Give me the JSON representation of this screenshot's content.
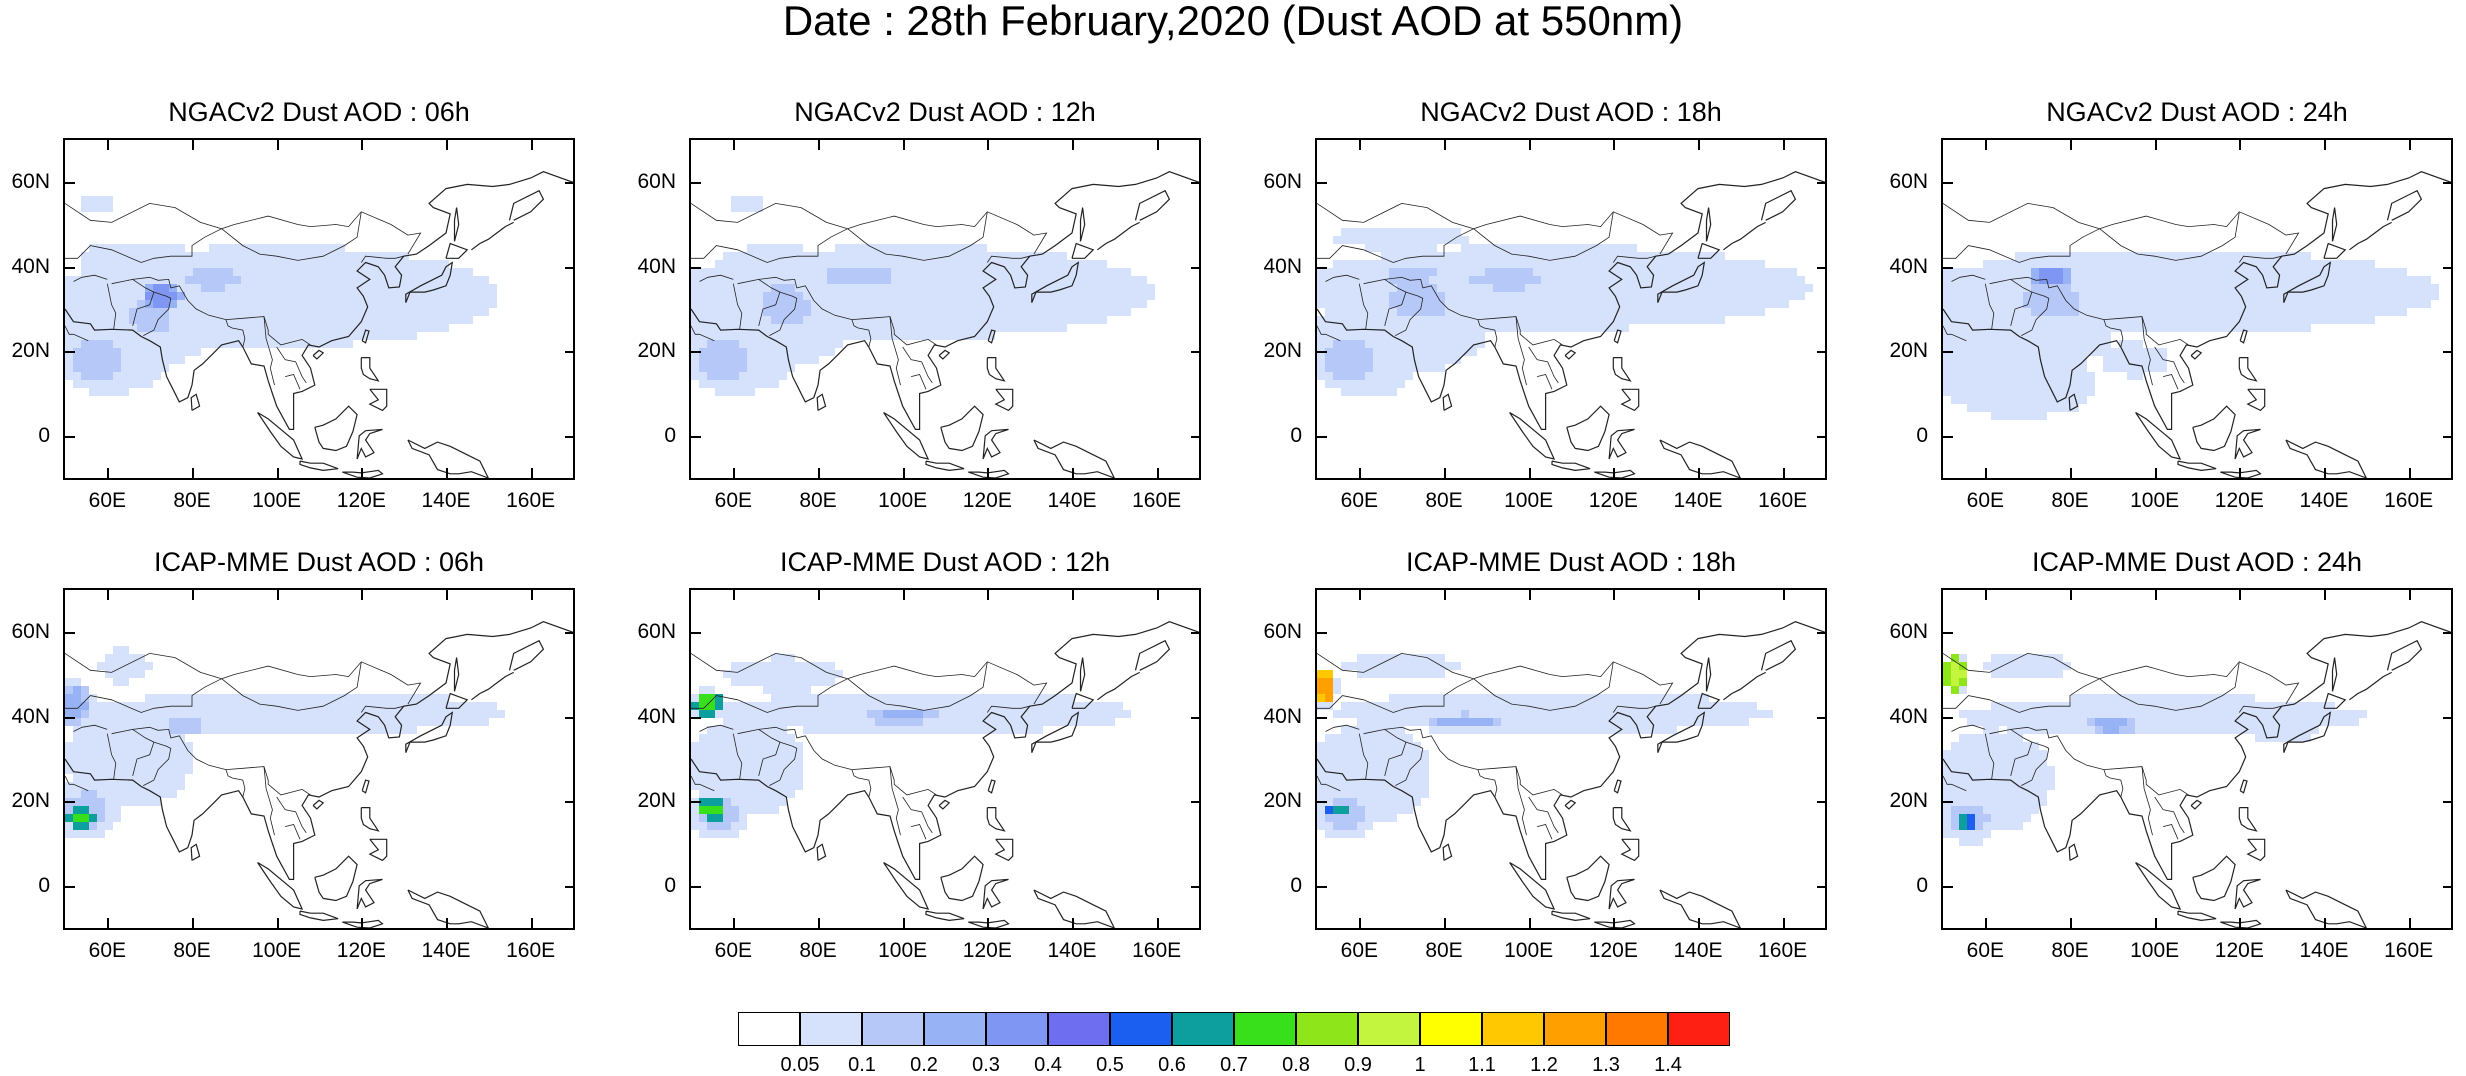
{
  "page": {
    "title": "Date : 28th February,2020 (Dust AOD at 550nm)"
  },
  "panels": [
    {
      "title": "NGACv2 Dust AOD : 06h"
    },
    {
      "title": "NGACv2 Dust AOD : 12h"
    },
    {
      "title": "NGACv2 Dust AOD : 18h"
    },
    {
      "title": "NGACv2 Dust AOD : 24h"
    },
    {
      "title": "ICAP-MME Dust AOD : 06h"
    },
    {
      "title": "ICAP-MME Dust AOD : 12h"
    },
    {
      "title": "ICAP-MME Dust AOD : 18h"
    },
    {
      "title": "ICAP-MME Dust AOD : 24h"
    }
  ],
  "map_axes": {
    "lat_ticks": [
      "60N",
      "40N",
      "20N",
      "0"
    ],
    "lat_values": [
      60,
      40,
      20,
      0
    ],
    "lon_ticks": [
      "60E",
      "80E",
      "100E",
      "120E",
      "140E",
      "160E"
    ],
    "lon_values": [
      60,
      80,
      100,
      120,
      140,
      160
    ],
    "lon_range": [
      50,
      170
    ],
    "lat_range": [
      -10,
      70
    ]
  },
  "colorbar": {
    "labels": [
      "0.05",
      "0.1",
      "0.2",
      "0.3",
      "0.4",
      "0.5",
      "0.6",
      "0.7",
      "0.8",
      "0.9",
      "1",
      "1.1",
      "1.2",
      "1.3",
      "1.4"
    ],
    "colors": [
      "#ffffff",
      "#d6e2fb",
      "#b6c8f8",
      "#98b2f6",
      "#7f97f3",
      "#6d6ef0",
      "#1a5ff0",
      "#0d9e9e",
      "#38e01c",
      "#8ee61a",
      "#c3f53e",
      "#ffff00",
      "#ffc800",
      "#ffa000",
      "#ff7800",
      "#ff2014"
    ]
  }
}
